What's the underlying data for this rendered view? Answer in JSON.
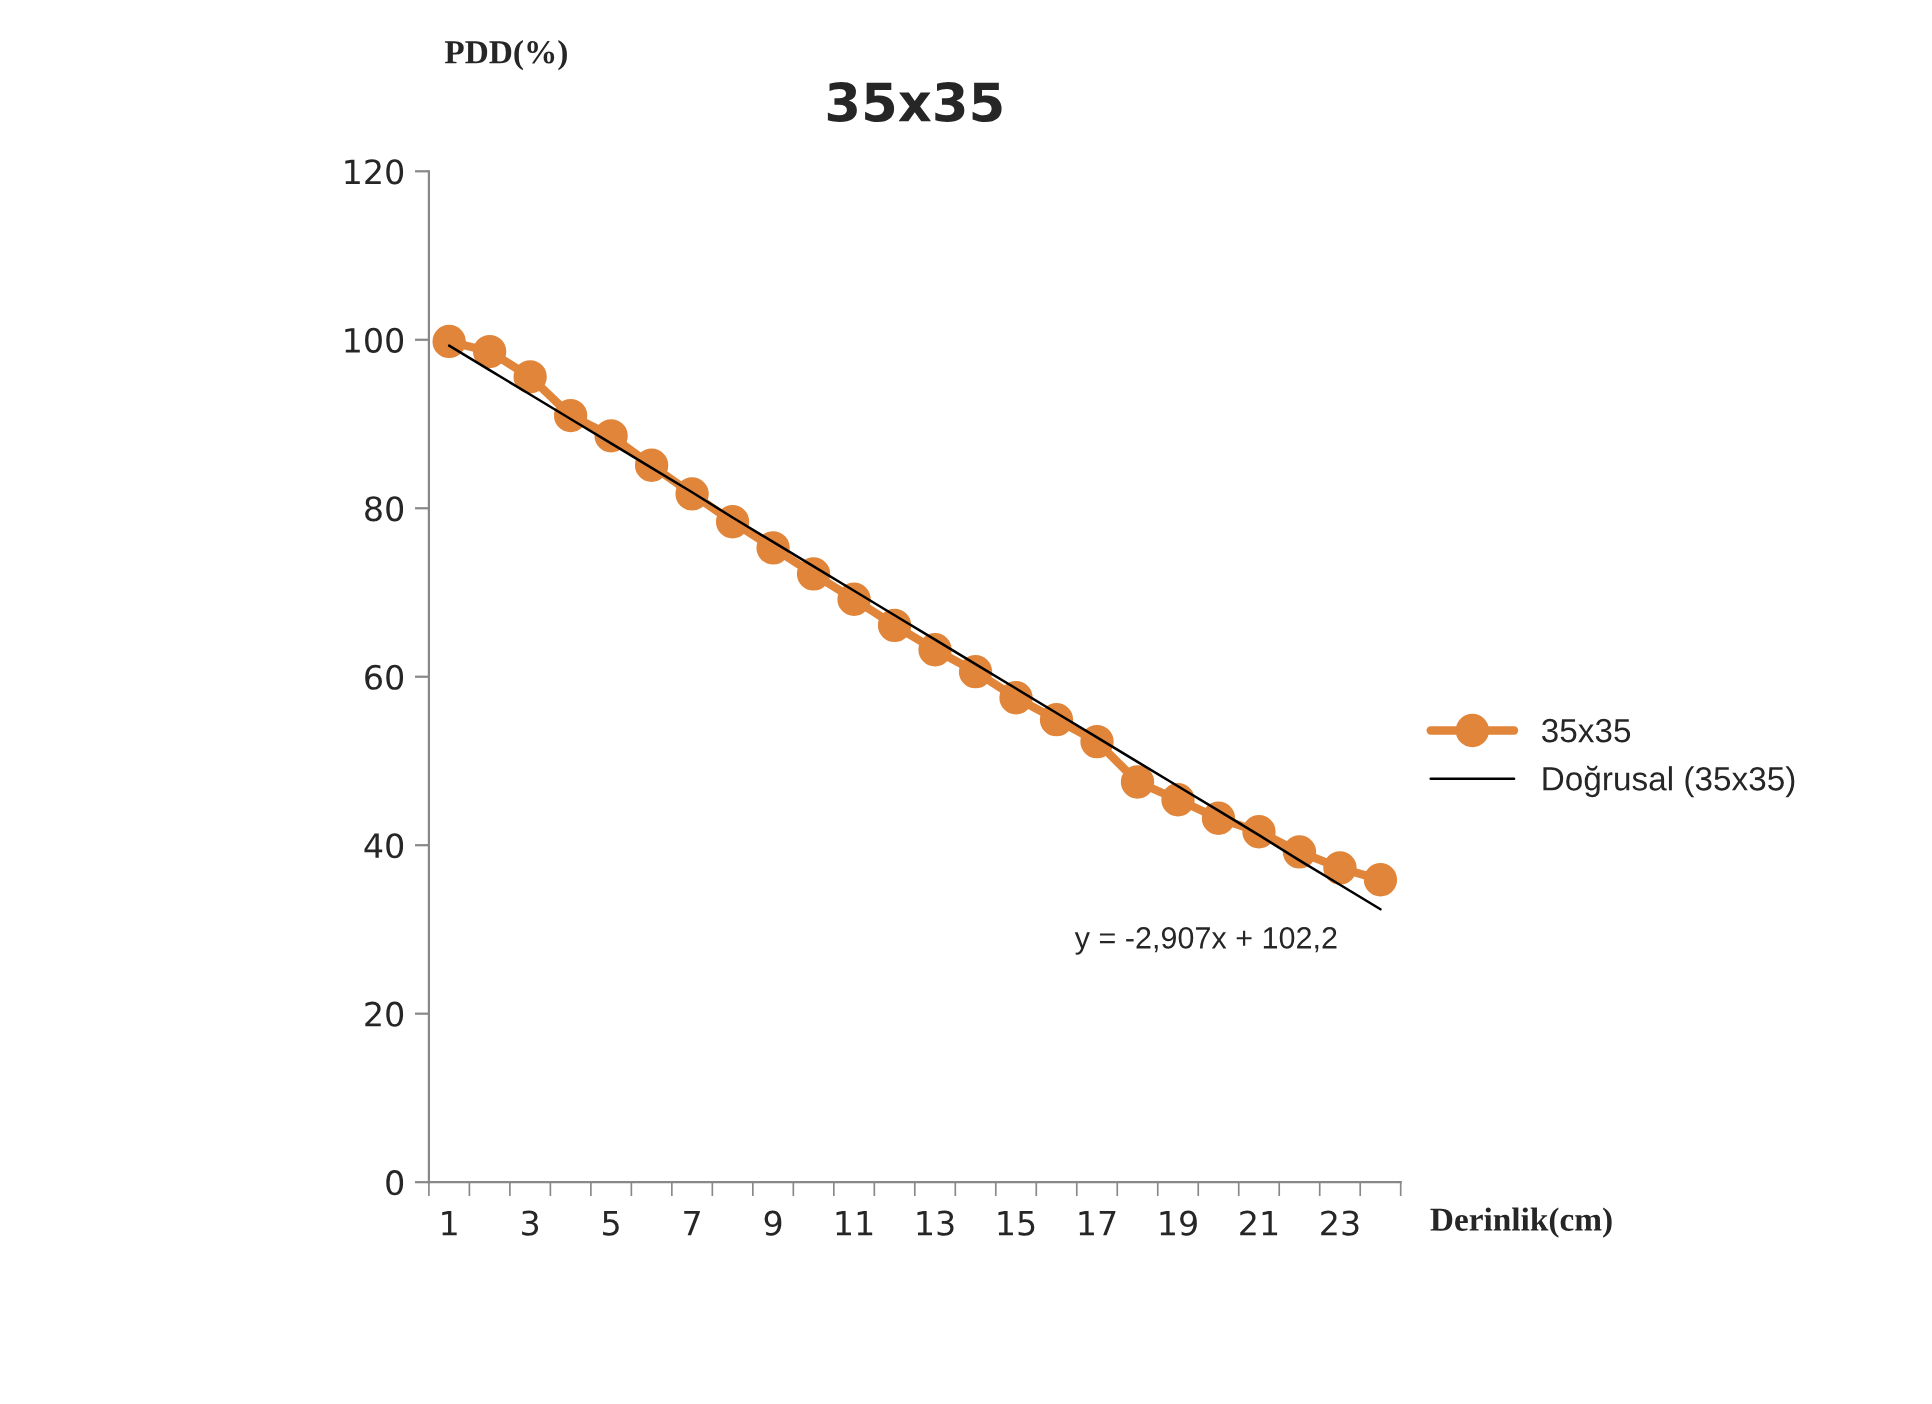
{
  "chart_data": {
    "type": "line",
    "title": "35x35",
    "xlabel": "Derinlik(cm)",
    "ylabel": "PDD(%)",
    "categories": [
      "1",
      null,
      "3",
      null,
      "5",
      null,
      "7",
      null,
      "9",
      null,
      "11",
      null,
      "13",
      null,
      "15",
      null,
      "17",
      null,
      "19",
      null,
      "21",
      null,
      "23",
      null
    ],
    "series": [
      {
        "name": "35x35",
        "color": "#e0853a",
        "marker": "circle",
        "values": [
          99.8,
          98.6,
          95.6,
          91.0,
          88.6,
          85.1,
          81.7,
          78.4,
          75.3,
          72.2,
          69.2,
          66.1,
          63.2,
          60.6,
          57.5,
          54.9,
          52.3,
          47.5,
          45.4,
          43.2,
          41.6,
          39.2,
          37.3,
          35.9
        ]
      },
      {
        "name": "Doğrusal (35x35)",
        "color": "#000000",
        "marker": "none",
        "values": [
          99.3,
          96.4,
          93.5,
          90.6,
          87.7,
          84.8,
          81.9,
          78.9,
          76.0,
          73.1,
          70.2,
          67.3,
          64.4,
          61.5,
          58.6,
          55.7,
          52.8,
          49.9,
          47.0,
          44.1,
          41.2,
          38.2,
          35.3,
          32.4
        ]
      }
    ],
    "ylim": [
      0,
      120
    ],
    "yticks": [
      0,
      20,
      40,
      60,
      80,
      100,
      120
    ],
    "grid": false,
    "legend": "right",
    "annotations": [
      "y = -2,907x + 102,2"
    ]
  }
}
